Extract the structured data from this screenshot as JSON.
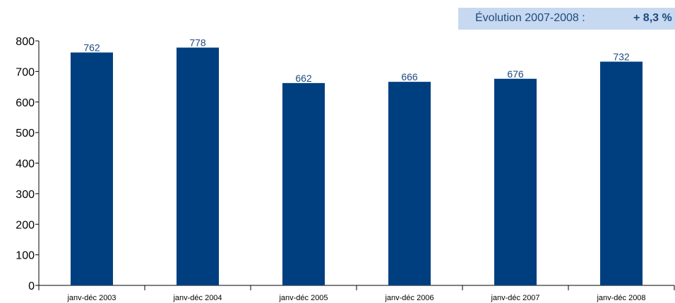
{
  "evolution": {
    "label": "Évolution 2007-2008 :",
    "value": "+ 8,3 %"
  },
  "colors": {
    "bar": "#003f7f",
    "data_label": "#1f497d",
    "banner_bg": "#c6d9f1"
  },
  "chart_data": {
    "type": "bar",
    "categories": [
      "janv-déc 2003",
      "janv-déc 2004",
      "janv-déc 2005",
      "janv-déc 2006",
      "janv-déc 2007",
      "janv-déc 2008"
    ],
    "values": [
      762,
      778,
      662,
      666,
      676,
      732
    ],
    "ylim": [
      0,
      800
    ],
    "yticks": [
      0,
      100,
      200,
      300,
      400,
      500,
      600,
      700,
      800
    ],
    "data_labels": true,
    "grid": false,
    "legend": "none",
    "title": "",
    "xlabel": "",
    "ylabel": ""
  }
}
